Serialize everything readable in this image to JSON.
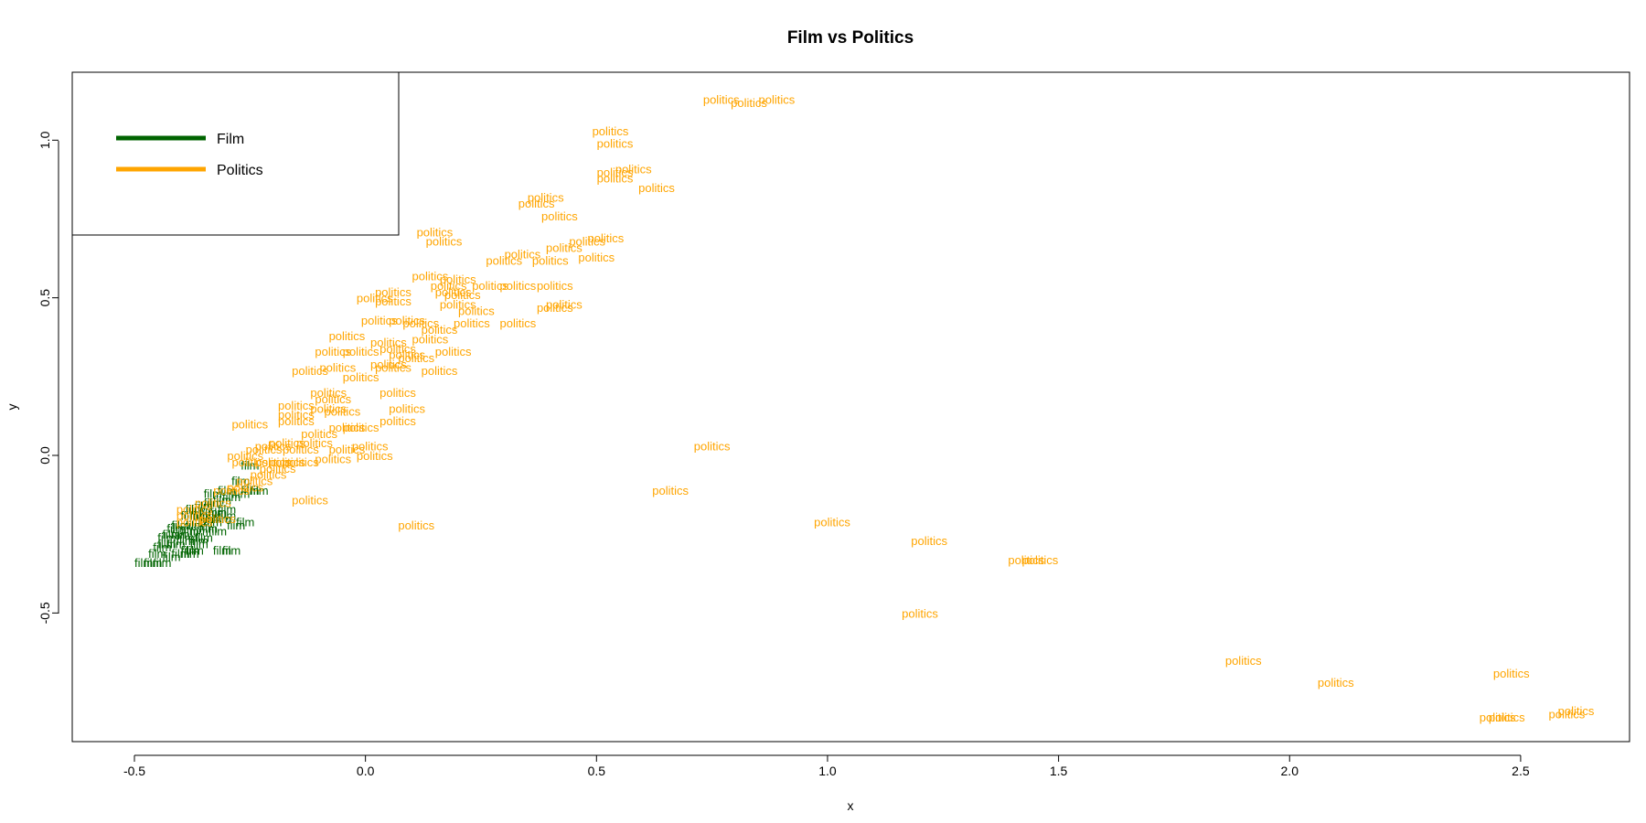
{
  "chart_data": {
    "type": "scatter",
    "title": "Film vs Politics",
    "xlabel": "x",
    "ylabel": "y",
    "xlim": [
      -0.65,
      2.75
    ],
    "ylim": [
      -0.9,
      1.22
    ],
    "xticks": [
      "-0.5",
      "0.0",
      "0.5",
      "1.0",
      "1.5",
      "2.0",
      "2.5"
    ],
    "yticks": [
      "-0.5",
      "0.0",
      "0.5",
      "1.0"
    ],
    "grid": false,
    "legend": {
      "position": "top-left",
      "entries": [
        {
          "label": "Film",
          "color": "#006400"
        },
        {
          "label": "Politics",
          "color": "#FFA500"
        }
      ]
    },
    "series": [
      {
        "name": "Film",
        "point_label": "film",
        "color": "#006400",
        "points": [
          [
            -0.48,
            -0.34
          ],
          [
            -0.46,
            -0.34
          ],
          [
            -0.44,
            -0.34
          ],
          [
            -0.45,
            -0.31
          ],
          [
            -0.42,
            -0.32
          ],
          [
            -0.4,
            -0.31
          ],
          [
            -0.38,
            -0.31
          ],
          [
            -0.37,
            -0.3
          ],
          [
            -0.43,
            -0.28
          ],
          [
            -0.41,
            -0.28
          ],
          [
            -0.39,
            -0.27
          ],
          [
            -0.36,
            -0.27
          ],
          [
            -0.42,
            -0.25
          ],
          [
            -0.4,
            -0.25
          ],
          [
            -0.38,
            -0.24
          ],
          [
            -0.36,
            -0.24
          ],
          [
            -0.34,
            -0.23
          ],
          [
            -0.4,
            -0.22
          ],
          [
            -0.37,
            -0.22
          ],
          [
            -0.35,
            -0.21
          ],
          [
            -0.33,
            -0.21
          ],
          [
            -0.31,
            -0.2
          ],
          [
            -0.38,
            -0.19
          ],
          [
            -0.36,
            -0.19
          ],
          [
            -0.34,
            -0.18
          ],
          [
            -0.32,
            -0.18
          ],
          [
            -0.3,
            -0.17
          ],
          [
            -0.35,
            -0.16
          ],
          [
            -0.33,
            -0.15
          ],
          [
            -0.31,
            -0.14
          ],
          [
            -0.29,
            -0.13
          ],
          [
            -0.27,
            -0.12
          ],
          [
            -0.25,
            -0.11
          ],
          [
            -0.33,
            -0.12
          ],
          [
            -0.3,
            -0.11
          ],
          [
            -0.25,
            -0.03
          ],
          [
            -0.31,
            -0.3
          ],
          [
            -0.29,
            -0.3
          ],
          [
            -0.28,
            -0.22
          ],
          [
            -0.26,
            -0.21
          ],
          [
            -0.27,
            -0.08
          ],
          [
            -0.23,
            -0.11
          ],
          [
            -0.39,
            -0.26
          ],
          [
            -0.41,
            -0.23
          ],
          [
            -0.35,
            -0.26
          ],
          [
            -0.38,
            -0.3
          ],
          [
            -0.32,
            -0.24
          ],
          [
            -0.3,
            -0.19
          ],
          [
            -0.36,
            -0.28
          ],
          [
            -0.34,
            -0.2
          ],
          [
            -0.44,
            -0.29
          ],
          [
            -0.43,
            -0.26
          ],
          [
            -0.37,
            -0.17
          ]
        ]
      },
      {
        "name": "Politics",
        "point_label": "politics",
        "color": "#FFA500",
        "points": [
          [
            0.77,
            1.13
          ],
          [
            0.83,
            1.12
          ],
          [
            0.89,
            1.13
          ],
          [
            0.53,
            1.03
          ],
          [
            0.54,
            0.99
          ],
          [
            0.54,
            0.9
          ],
          [
            0.58,
            0.91
          ],
          [
            0.54,
            0.88
          ],
          [
            0.63,
            0.85
          ],
          [
            0.39,
            0.82
          ],
          [
            0.37,
            0.8
          ],
          [
            0.42,
            0.76
          ],
          [
            0.15,
            0.71
          ],
          [
            0.17,
            0.68
          ],
          [
            0.52,
            0.69
          ],
          [
            0.48,
            0.68
          ],
          [
            0.43,
            0.66
          ],
          [
            0.34,
            0.64
          ],
          [
            0.3,
            0.62
          ],
          [
            0.4,
            0.62
          ],
          [
            0.5,
            0.63
          ],
          [
            0.14,
            0.57
          ],
          [
            0.2,
            0.56
          ],
          [
            0.18,
            0.54
          ],
          [
            0.27,
            0.54
          ],
          [
            0.33,
            0.54
          ],
          [
            0.41,
            0.54
          ],
          [
            0.19,
            0.52
          ],
          [
            0.21,
            0.51
          ],
          [
            0.06,
            0.52
          ],
          [
            0.02,
            0.5
          ],
          [
            0.06,
            0.49
          ],
          [
            0.2,
            0.48
          ],
          [
            0.43,
            0.48
          ],
          [
            0.41,
            0.47
          ],
          [
            0.24,
            0.46
          ],
          [
            0.03,
            0.43
          ],
          [
            0.09,
            0.43
          ],
          [
            0.12,
            0.42
          ],
          [
            0.23,
            0.42
          ],
          [
            0.33,
            0.42
          ],
          [
            0.16,
            0.4
          ],
          [
            -0.04,
            0.38
          ],
          [
            0.05,
            0.36
          ],
          [
            0.14,
            0.37
          ],
          [
            0.07,
            0.34
          ],
          [
            -0.07,
            0.33
          ],
          [
            -0.01,
            0.33
          ],
          [
            0.09,
            0.32
          ],
          [
            0.19,
            0.33
          ],
          [
            0.11,
            0.31
          ],
          [
            0.05,
            0.29
          ],
          [
            -0.06,
            0.28
          ],
          [
            0.06,
            0.28
          ],
          [
            -0.12,
            0.27
          ],
          [
            0.16,
            0.27
          ],
          [
            -0.01,
            0.25
          ],
          [
            -0.08,
            0.2
          ],
          [
            -0.07,
            0.18
          ],
          [
            0.07,
            0.2
          ],
          [
            -0.15,
            0.16
          ],
          [
            -0.08,
            0.15
          ],
          [
            0.09,
            0.15
          ],
          [
            -0.15,
            0.13
          ],
          [
            -0.05,
            0.14
          ],
          [
            -0.15,
            0.11
          ],
          [
            -0.25,
            0.1
          ],
          [
            -0.04,
            0.09
          ],
          [
            0.07,
            0.11
          ],
          [
            -0.01,
            0.09
          ],
          [
            -0.1,
            0.07
          ],
          [
            -0.17,
            0.04
          ],
          [
            0.01,
            0.03
          ],
          [
            -0.2,
            0.03
          ],
          [
            -0.11,
            0.04
          ],
          [
            -0.22,
            0.02
          ],
          [
            -0.04,
            0.02
          ],
          [
            -0.14,
            0.02
          ],
          [
            0.02,
            0.0
          ],
          [
            -0.26,
            0.0
          ],
          [
            -0.07,
            -0.01
          ],
          [
            -0.17,
            -0.02
          ],
          [
            -0.2,
            -0.02
          ],
          [
            -0.25,
            -0.02
          ],
          [
            -0.14,
            -0.02
          ],
          [
            -0.19,
            -0.04
          ],
          [
            -0.21,
            -0.06
          ],
          [
            -0.24,
            -0.08
          ],
          [
            -0.26,
            -0.1
          ],
          [
            -0.29,
            -0.11
          ],
          [
            -0.33,
            -0.15
          ],
          [
            -0.37,
            -0.19
          ],
          [
            -0.37,
            -0.21
          ],
          [
            -0.32,
            -0.2
          ],
          [
            -0.37,
            -0.17
          ],
          [
            -0.12,
            -0.14
          ],
          [
            0.11,
            -0.22
          ],
          [
            0.75,
            0.03
          ],
          [
            0.66,
            -0.11
          ],
          [
            1.01,
            -0.21
          ],
          [
            1.22,
            -0.27
          ],
          [
            1.43,
            -0.33
          ],
          [
            1.46,
            -0.33
          ],
          [
            1.2,
            -0.5
          ],
          [
            1.9,
            -0.65
          ],
          [
            2.1,
            -0.72
          ],
          [
            2.48,
            -0.69
          ],
          [
            2.45,
            -0.83
          ],
          [
            2.47,
            -0.83
          ],
          [
            2.6,
            -0.82
          ],
          [
            2.62,
            -0.81
          ]
        ]
      }
    ]
  }
}
